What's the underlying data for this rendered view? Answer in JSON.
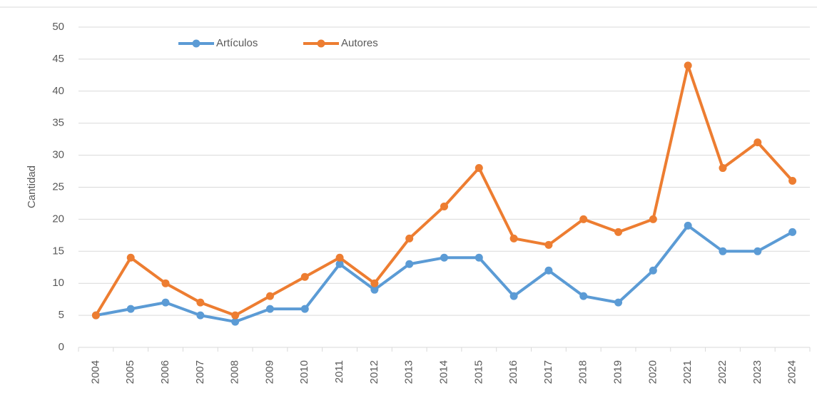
{
  "chart_data": {
    "type": "line",
    "y_label": "Cantidad",
    "categories": [
      "2004",
      "2005",
      "2006",
      "2007",
      "2008",
      "2009",
      "2010",
      "2011",
      "2012",
      "2013",
      "2014",
      "2015",
      "2016",
      "2017",
      "2018",
      "2019",
      "2020",
      "2021",
      "2022",
      "2023",
      "2024"
    ],
    "series": [
      {
        "name": "Artículos",
        "color": "#5b9bd5",
        "values": [
          5,
          6,
          7,
          5,
          4,
          6,
          6,
          13,
          9,
          13,
          14,
          14,
          8,
          12,
          8,
          7,
          12,
          19,
          15,
          15,
          18
        ]
      },
      {
        "name": "Autores",
        "color": "#ed7d31",
        "values": [
          5,
          14,
          10,
          7,
          5,
          8,
          11,
          14,
          10,
          17,
          22,
          28,
          17,
          16,
          20,
          18,
          20,
          44,
          28,
          32,
          26
        ]
      }
    ],
    "ylim": [
      0,
      50
    ],
    "yticks": [
      0,
      5,
      10,
      15,
      20,
      25,
      30,
      35,
      40,
      45,
      50
    ],
    "grid": true,
    "legend": "top-left"
  }
}
